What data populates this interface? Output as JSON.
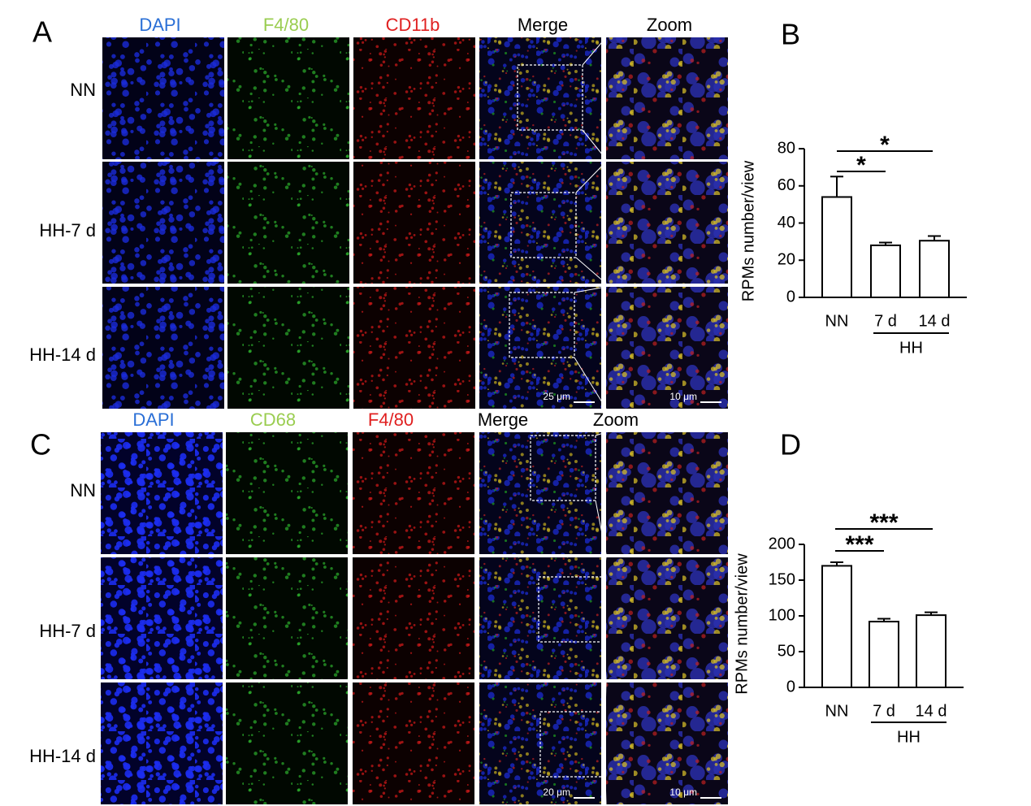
{
  "panels": [
    {
      "label": "A",
      "columns": [
        "DAPI",
        "F4/80",
        "CD11b",
        "Merge",
        "Zoom"
      ],
      "rows": [
        "NN",
        "HH-7 d",
        "HH-14 d"
      ],
      "scale_bars": [
        "25 μm",
        "10 μm"
      ]
    },
    {
      "label": "C",
      "columns": [
        "DAPI",
        "CD68",
        "F4/80",
        "Merge",
        "Zoom"
      ],
      "rows": [
        "NN",
        "HH-7 d",
        "HH-14 d"
      ],
      "scale_bars": [
        "20 μm",
        "10 μm"
      ]
    }
  ],
  "chart_data": [
    {
      "type": "bar",
      "panel_label": "B",
      "y_label": "RPMs number/view",
      "categories": [
        "NN",
        "7 d",
        "14 d"
      ],
      "values": [
        54,
        28,
        30.5
      ],
      "errors": [
        11,
        1.5,
        2.5
      ],
      "color": "#ffffff",
      "ylim": [
        0,
        80
      ],
      "yticks": [
        0,
        20,
        40,
        60,
        80
      ],
      "group_label": "HH",
      "annotations": [
        "*",
        "*"
      ]
    },
    {
      "type": "bar",
      "panel_label": "D",
      "y_label": "RPMs number/view",
      "categories": [
        "NN",
        "7 d",
        "14 d"
      ],
      "values": [
        170,
        92,
        101
      ],
      "errors": [
        5,
        4,
        4
      ],
      "color": "#ffffff",
      "ylim": [
        0,
        200
      ],
      "yticks": [
        0,
        50,
        100,
        150,
        200
      ],
      "group_label": "HH",
      "annotations": [
        "***",
        "***"
      ]
    }
  ]
}
